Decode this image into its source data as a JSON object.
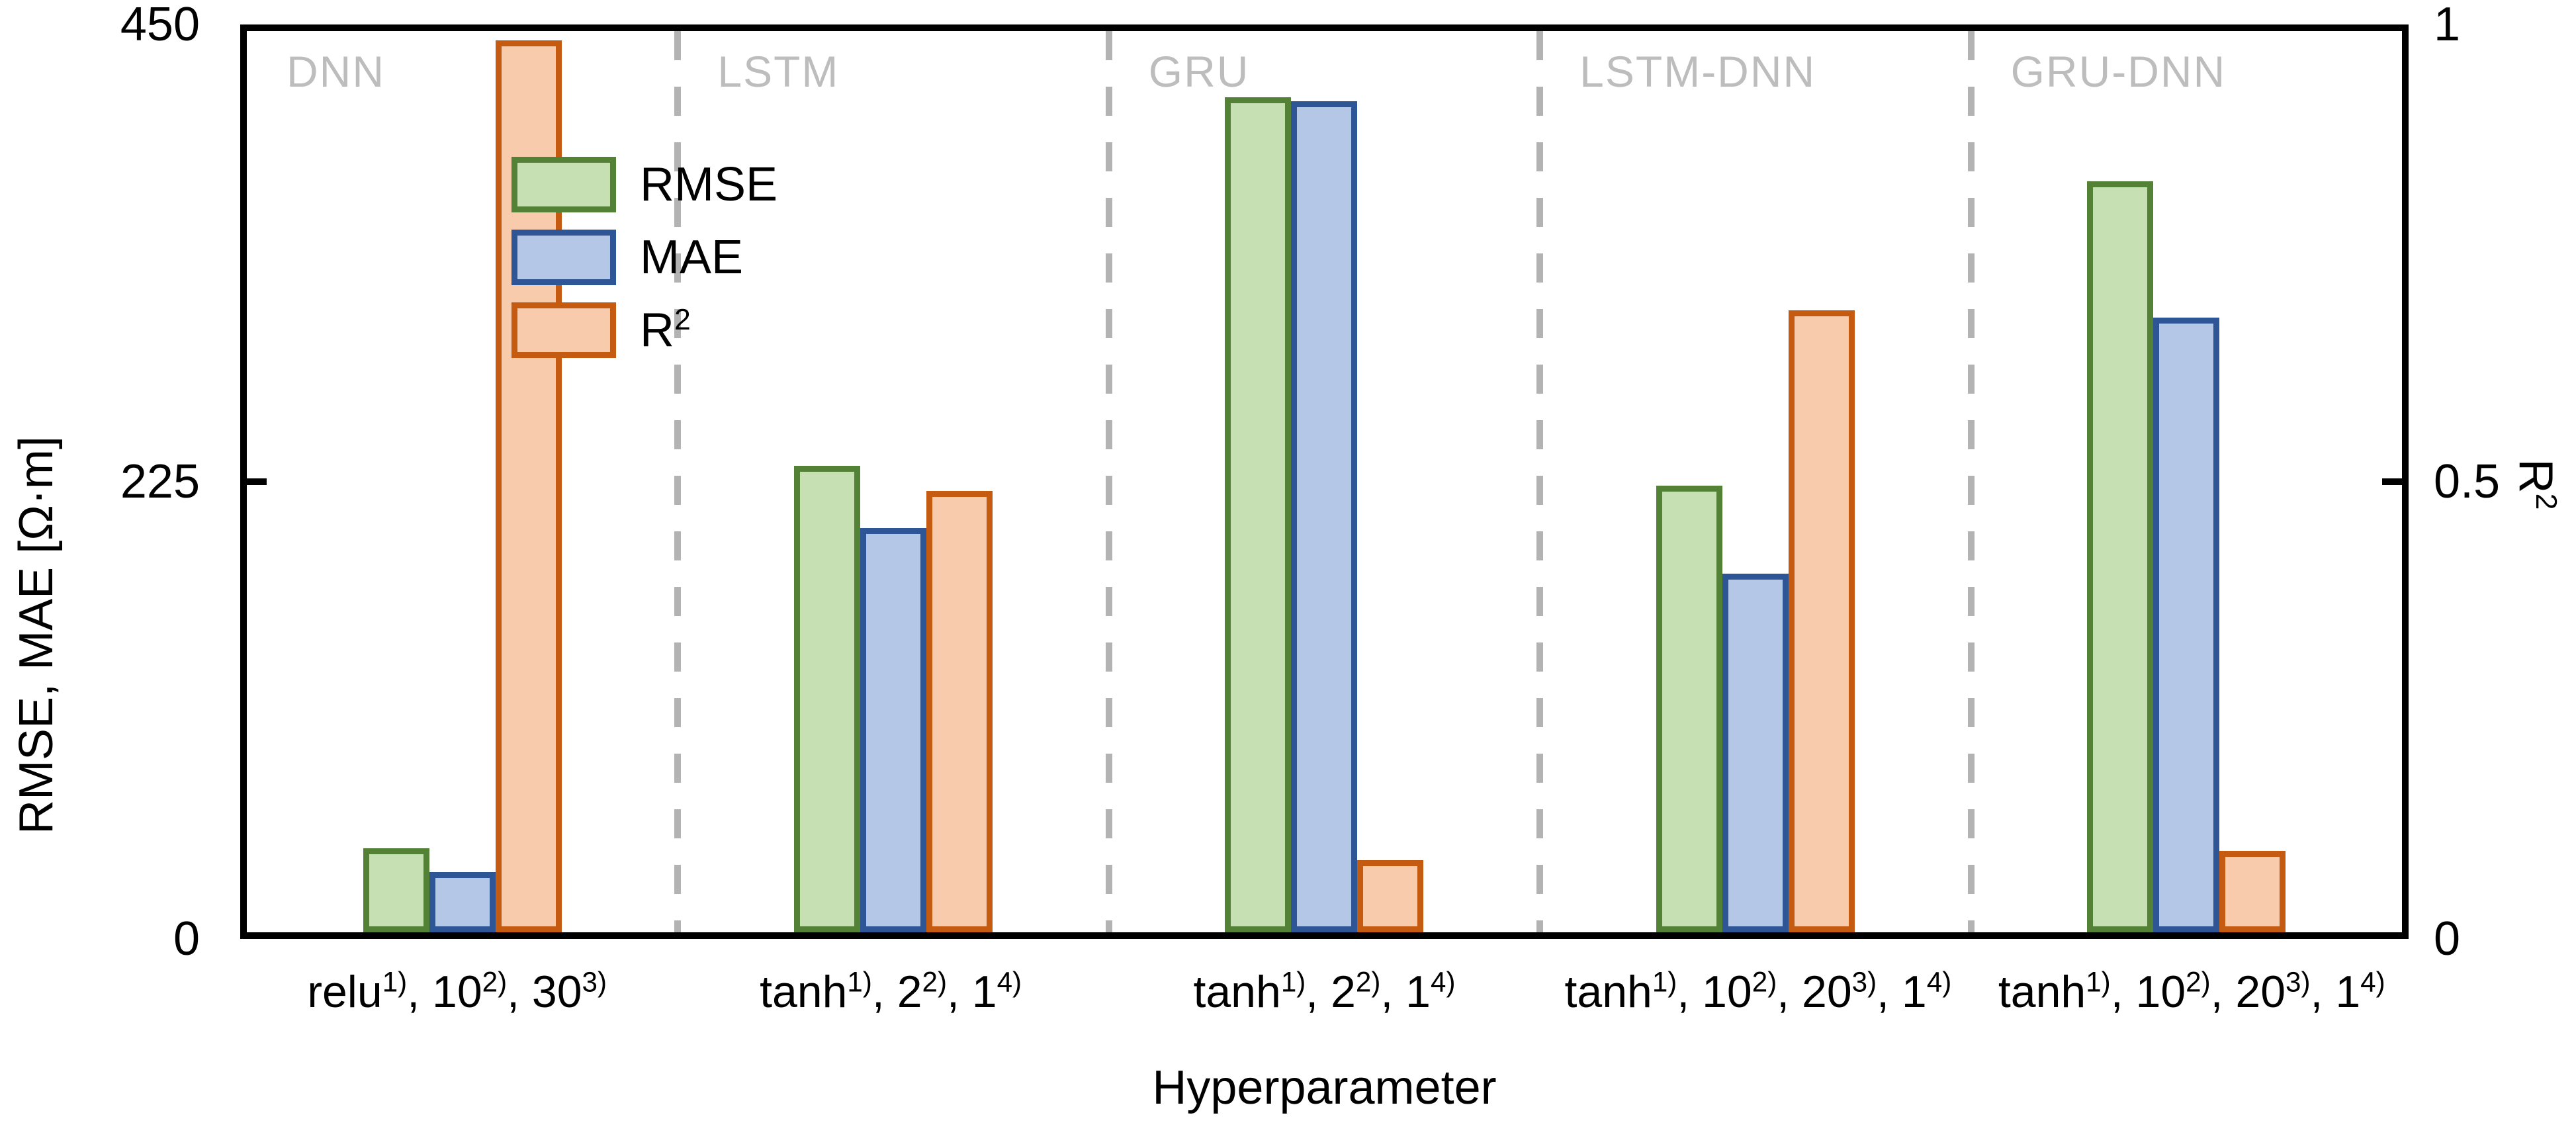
{
  "chart_data": {
    "type": "bar",
    "xlabel": "Hyperparameter",
    "ylabel_left": "RMSE, MAE [Ω·m]",
    "ylabel_right": "R^2",
    "ylim_left": [
      0,
      450
    ],
    "ylim_right": [
      0,
      1
    ],
    "yticks_left": [
      "450",
      "225",
      "0"
    ],
    "yticks_right": [
      "1",
      "0.5",
      "0"
    ],
    "grid": false,
    "legend_position": "top-left-inside",
    "group_label_color": "#bdbdbd",
    "separator_color": "#b3b3b3",
    "axis_color": "#000000",
    "series_meta": [
      {
        "key": "RMSE",
        "label": "RMSE",
        "axis": "left",
        "fill": "#c6e0b4",
        "border": "#538135"
      },
      {
        "key": "MAE",
        "label": "MAE",
        "axis": "left",
        "fill": "#b4c7e7",
        "border": "#2e5596"
      },
      {
        "key": "R2",
        "label": "R^2",
        "axis": "right",
        "fill": "#f8cbad",
        "border": "#c55a11"
      }
    ],
    "groups": [
      {
        "name": "DNN",
        "tick": "relu^1), 10^2), 30^3)",
        "RMSE": 42,
        "MAE": 30,
        "R2": 0.99
      },
      {
        "name": "LSTM",
        "tick": "tanh^1), 2^2), 1^4)",
        "RMSE": 233,
        "MAE": 202,
        "R2": 0.49
      },
      {
        "name": "GRU",
        "tick": "tanh^1), 2^2), 1^4)",
        "RMSE": 417,
        "MAE": 415,
        "R2": 0.08
      },
      {
        "name": "LSTM-DNN",
        "tick": "tanh^1), 10^2), 20^3), 1^4)",
        "RMSE": 223,
        "MAE": 179,
        "R2": 0.69
      },
      {
        "name": "GRU-DNN",
        "tick": "tanh^1), 10^2), 20^3), 1^4)",
        "RMSE": 375,
        "MAE": 307,
        "R2": 0.09
      }
    ]
  }
}
